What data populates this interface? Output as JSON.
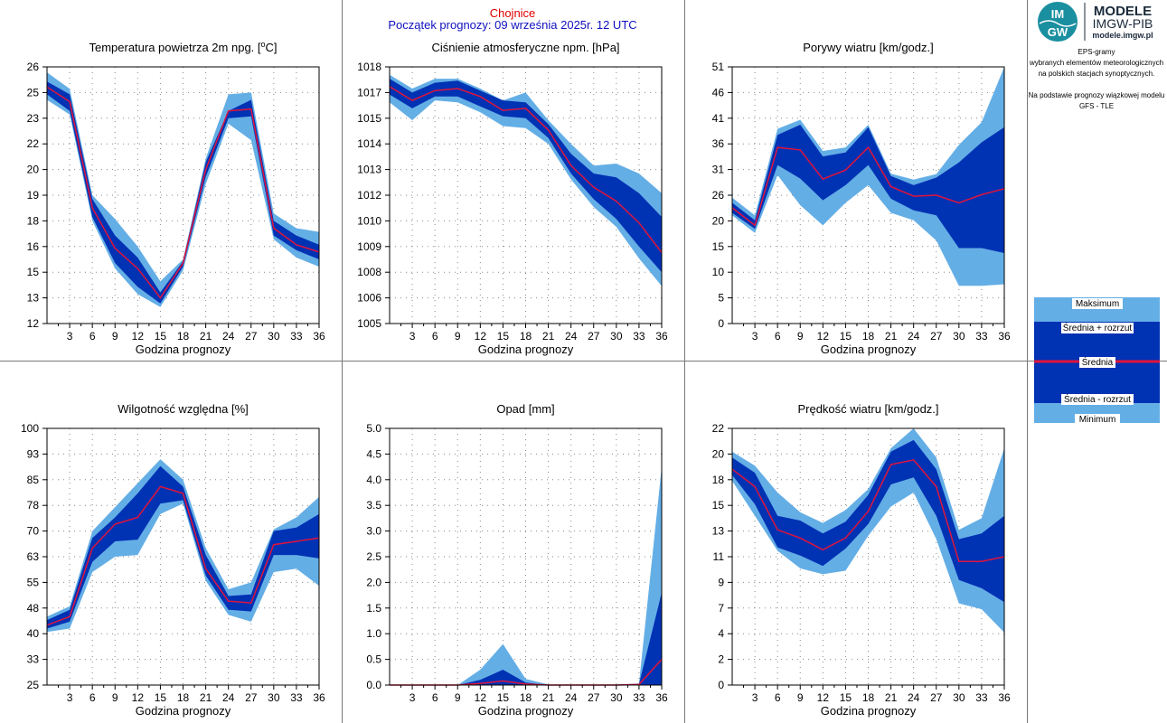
{
  "header": {
    "station": "Chojnice",
    "forecast_start": "Początek prognozy: 09 września 2025r. 12 UTC"
  },
  "logo": {
    "badge_top": "IM",
    "badge_bottom": "GW",
    "line1": "MODELE",
    "line2": "IMGW-PIB",
    "line3": "modele.imgw.pl"
  },
  "info": {
    "lines": [
      "EPS-gramy",
      "wybranych elementów meteorologicznych",
      "na polskich stacjach  synoptycznych.",
      "",
      "Na podstawie prognozy wiązkowej modelu",
      "GFS - TLE"
    ]
  },
  "legend": {
    "max": "Maksimum",
    "mean_plus": "Średnia + rozrzut",
    "mean": "Średnia",
    "mean_minus": "Średnia - rozrzut",
    "min": "Minimum"
  },
  "colors": {
    "light_band": "#64aee6",
    "dark_band": "#0032b4",
    "mean_line": "#e0143c",
    "grid": "#888888"
  },
  "chart_data": [
    {
      "type": "area",
      "title_main": "Temperatura powietrza 2m npg. [",
      "title_sup": "o",
      "title_rest": "C]",
      "xlabel": "Godzina prognozy",
      "x": [
        0,
        3,
        6,
        9,
        12,
        15,
        18,
        21,
        24,
        27,
        30,
        33,
        36
      ],
      "x_tick_labels": [
        "3",
        "6",
        "9",
        "12",
        "15",
        "18",
        "21",
        "24",
        "27",
        "30",
        "33",
        "36"
      ],
      "y_tick_labels": [
        "12",
        "13",
        "15",
        "16",
        "18",
        "19",
        "20",
        "22",
        "23",
        "25",
        "26"
      ],
      "ylim": [
        12,
        26
      ],
      "series": {
        "max": [
          25.7,
          24.8,
          19.0,
          17.7,
          16.2,
          14.3,
          15.5,
          21.0,
          24.5,
          24.6,
          18.0,
          17.2,
          17.0
        ],
        "upper": [
          25.2,
          24.5,
          18.8,
          16.8,
          15.6,
          13.7,
          15.4,
          20.8,
          23.6,
          24.2,
          17.6,
          16.8,
          16.3
        ],
        "mean": [
          24.9,
          24.1,
          18.3,
          16.1,
          15.0,
          13.4,
          15.3,
          20.4,
          23.6,
          23.7,
          17.2,
          16.3,
          15.9
        ],
        "lower": [
          24.5,
          23.6,
          17.8,
          15.3,
          14.0,
          13.1,
          15.1,
          20.0,
          23.2,
          23.3,
          16.8,
          16.0,
          15.5
        ],
        "min": [
          24.2,
          23.4,
          17.6,
          15.0,
          13.6,
          12.9,
          14.9,
          19.6,
          22.9,
          22.0,
          16.6,
          15.6,
          15.1
        ]
      }
    },
    {
      "type": "area",
      "title_main": "Ciśnienie atmosferyczne npm. [hPa]",
      "xlabel": "Godzina prognozy",
      "x": [
        0,
        3,
        6,
        9,
        12,
        15,
        18,
        21,
        24,
        27,
        30,
        33,
        36
      ],
      "x_tick_labels": [
        "3",
        "6",
        "9",
        "12",
        "15",
        "18",
        "21",
        "24",
        "27",
        "30",
        "33",
        "36"
      ],
      "y_tick_labels": [
        "1005",
        "1006",
        "1008",
        "1009",
        "1010",
        "1012",
        "1013",
        "1014",
        "1015",
        "1017",
        "1018"
      ],
      "ylim": [
        1005,
        1018
      ],
      "series": {
        "max": [
          1017.6,
          1016.9,
          1017.4,
          1017.4,
          1016.9,
          1016.3,
          1016.7,
          1015.3,
          1014.1,
          1013.0,
          1013.1,
          1012.6,
          1011.6
        ],
        "upper": [
          1017.4,
          1016.7,
          1017.2,
          1017.3,
          1016.8,
          1016.3,
          1016.2,
          1015.1,
          1013.6,
          1012.6,
          1012.4,
          1011.6,
          1010.4
        ],
        "mean": [
          1017.0,
          1016.3,
          1016.8,
          1016.9,
          1016.5,
          1015.8,
          1015.9,
          1014.8,
          1013.0,
          1011.9,
          1011.2,
          1010.1,
          1008.6
        ],
        "lower": [
          1016.6,
          1015.9,
          1016.5,
          1016.5,
          1016.0,
          1015.5,
          1015.4,
          1014.4,
          1012.6,
          1011.3,
          1010.3,
          1008.9,
          1007.6
        ],
        "min": [
          1016.2,
          1015.3,
          1016.3,
          1016.2,
          1015.7,
          1015.0,
          1014.9,
          1014.1,
          1012.3,
          1010.9,
          1009.9,
          1008.3,
          1006.9
        ]
      }
    },
    {
      "type": "area",
      "title_main": "Porywy wiatru [km/godz.]",
      "xlabel": "Godzina prognozy",
      "x": [
        0,
        3,
        6,
        9,
        12,
        15,
        18,
        21,
        24,
        27,
        30,
        33,
        36
      ],
      "x_tick_labels": [
        "3",
        "6",
        "9",
        "12",
        "15",
        "18",
        "21",
        "24",
        "27",
        "30",
        "33",
        "36"
      ],
      "y_tick_labels": [
        "0",
        "5",
        "10",
        "15",
        "20",
        "26",
        "31",
        "36",
        "41",
        "46",
        "51"
      ],
      "ylim": [
        0,
        51
      ],
      "series": {
        "max": [
          25.0,
          21.5,
          38.7,
          40.5,
          34.3,
          35.0,
          39.5,
          29.8,
          28.6,
          29.7,
          35.5,
          40.0,
          51.0
        ],
        "upper": [
          24.0,
          20.5,
          37.5,
          39.5,
          33.2,
          34.0,
          39.0,
          29.3,
          27.5,
          29.0,
          32.0,
          36.0,
          39.0
        ],
        "mean": [
          23.0,
          19.5,
          35.0,
          34.5,
          28.7,
          30.5,
          35.0,
          27.2,
          25.3,
          25.5,
          24.0,
          25.6,
          26.8
        ],
        "lower": [
          22.0,
          18.8,
          31.5,
          28.8,
          24.5,
          27.5,
          31.5,
          24.8,
          22.5,
          21.5,
          15.0,
          15.0,
          14.0
        ],
        "min": [
          21.5,
          18.0,
          29.5,
          23.5,
          19.5,
          24.0,
          27.5,
          22.0,
          20.5,
          16.5,
          7.5,
          7.5,
          7.8
        ]
      }
    },
    {
      "type": "area",
      "title_main": "Wilgotność względna [%]",
      "xlabel": "Godzina prognozy",
      "x": [
        0,
        3,
        6,
        9,
        12,
        15,
        18,
        21,
        24,
        27,
        30,
        33,
        36
      ],
      "x_tick_labels": [
        "3",
        "6",
        "9",
        "12",
        "15",
        "18",
        "21",
        "24",
        "27",
        "30",
        "33",
        "36"
      ],
      "y_tick_labels": [
        "25",
        "33",
        "40",
        "48",
        "55",
        "63",
        "70",
        "78",
        "85",
        "93",
        "100"
      ],
      "ylim": [
        25,
        100
      ],
      "series": {
        "max": [
          45.0,
          48.0,
          70.0,
          77.0,
          84.0,
          91.0,
          85.0,
          65.0,
          53.0,
          55.0,
          70.5,
          74.0,
          80.0
        ],
        "upper": [
          44.0,
          47.0,
          68.0,
          74.0,
          81.0,
          89.0,
          83.0,
          63.0,
          51.0,
          51.5,
          70.0,
          71.0,
          75.0
        ],
        "mean": [
          42.5,
          45.0,
          65.0,
          72.0,
          74.0,
          83.0,
          81.0,
          59.0,
          49.5,
          49.0,
          66.0,
          67.0,
          68.0
        ],
        "lower": [
          41.5,
          43.5,
          61.0,
          67.0,
          67.5,
          78.0,
          79.0,
          57.0,
          47.0,
          46.5,
          63.0,
          63.0,
          62.0
        ],
        "min": [
          40.5,
          41.5,
          58.0,
          62.5,
          63.0,
          75.0,
          78.0,
          55.5,
          45.5,
          43.5,
          58.0,
          59.0,
          54.0
        ]
      }
    },
    {
      "type": "area",
      "title_main": "Opad [mm]",
      "xlabel": "Godzina prognozy",
      "x": [
        0,
        3,
        6,
        9,
        12,
        15,
        18,
        21,
        24,
        27,
        30,
        33,
        36
      ],
      "x_tick_labels": [
        "3",
        "6",
        "9",
        "12",
        "15",
        "18",
        "21",
        "24",
        "27",
        "30",
        "33",
        "36"
      ],
      "y_tick_labels": [
        "0.0",
        "0.5",
        "1.0",
        "1.5",
        "2.0",
        "2.5",
        "3.0",
        "3.5",
        "4.0",
        "4.5",
        "5.0"
      ],
      "ylim": [
        0,
        5
      ],
      "series": {
        "max": [
          0,
          0,
          0,
          0,
          0.3,
          0.8,
          0.12,
          0.01,
          0,
          0,
          0.01,
          0.03,
          4.25
        ],
        "upper": [
          0,
          0,
          0,
          0,
          0.1,
          0.3,
          0.05,
          0,
          0,
          0,
          0,
          0.02,
          1.8
        ],
        "mean": [
          0,
          0,
          0,
          0,
          0.03,
          0.08,
          0.02,
          0,
          0,
          0,
          0,
          0.01,
          0.5
        ],
        "lower": [
          0,
          0,
          0,
          0,
          0,
          0,
          0,
          0,
          0,
          0,
          0,
          0,
          0
        ],
        "min": [
          0,
          0,
          0,
          0,
          0,
          0,
          0,
          0,
          0,
          0,
          0,
          0,
          0
        ]
      }
    },
    {
      "type": "area",
      "title_main": "Prędkość wiatru [km/godz.]",
      "xlabel": "Godzina prognozy",
      "x": [
        0,
        3,
        6,
        9,
        12,
        15,
        18,
        21,
        24,
        27,
        30,
        33,
        36
      ],
      "x_tick_labels": [
        "3",
        "6",
        "9",
        "12",
        "15",
        "18",
        "21",
        "24",
        "27",
        "30",
        "33",
        "36"
      ],
      "y_tick_labels": [
        "0",
        "2",
        "4",
        "7",
        "9",
        "11",
        "13",
        "15",
        "18",
        "20",
        "22"
      ],
      "ylim": [
        0,
        22
      ],
      "series": {
        "max": [
          20.0,
          18.8,
          16.5,
          14.8,
          13.9,
          15.0,
          16.8,
          20.3,
          22.0,
          19.5,
          13.3,
          14.3,
          20.3
        ],
        "upper": [
          19.5,
          18.2,
          14.5,
          14.1,
          13.0,
          14.0,
          16.3,
          20.0,
          21.0,
          18.5,
          12.5,
          13.0,
          14.5
        ],
        "mean": [
          18.5,
          17.0,
          13.3,
          12.6,
          11.6,
          12.6,
          14.9,
          18.9,
          19.3,
          17.0,
          10.6,
          10.6,
          11.0
        ],
        "lower": [
          18.0,
          15.5,
          11.8,
          11.1,
          10.2,
          11.7,
          13.8,
          17.2,
          17.8,
          14.5,
          9.0,
          8.3,
          7.1
        ],
        "min": [
          17.5,
          14.5,
          11.5,
          10.0,
          9.5,
          9.8,
          12.8,
          15.3,
          16.5,
          12.5,
          7.0,
          6.5,
          4.5
        ]
      }
    }
  ]
}
